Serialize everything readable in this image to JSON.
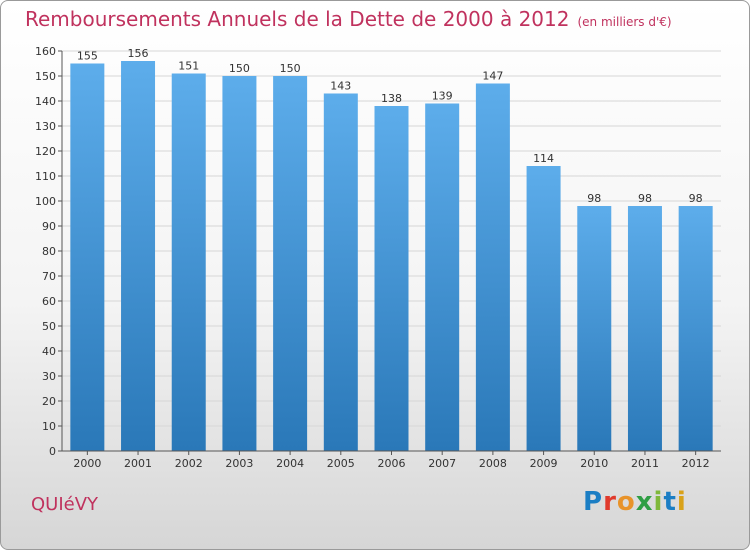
{
  "header": {
    "title": "Remboursements Annuels de la Dette de 2000 à 2012",
    "subtitle": "(en milliers d'€)"
  },
  "footer": {
    "commune": "QUIéVY",
    "logo": [
      "P",
      "r",
      "o",
      "x",
      "i",
      "t",
      "i"
    ]
  },
  "colors": {
    "bar_light": "#5dadeb",
    "bar_dark": "#2a78b8",
    "title": "#c0325e",
    "grid": "#d6d6d6"
  },
  "chart_data": {
    "type": "bar",
    "title": "Remboursements Annuels de la Dette de 2000 à 2012",
    "subtitle": "(en milliers d'€)",
    "categories": [
      "2000",
      "2001",
      "2002",
      "2003",
      "2004",
      "2005",
      "2006",
      "2007",
      "2008",
      "2009",
      "2010",
      "2011",
      "2012"
    ],
    "values": [
      155,
      156,
      151,
      150,
      150,
      143,
      138,
      139,
      147,
      114,
      98,
      98,
      98
    ],
    "ylim": [
      0,
      160
    ],
    "yticks": [
      0,
      10,
      20,
      30,
      40,
      50,
      60,
      70,
      80,
      90,
      100,
      110,
      120,
      130,
      140,
      150,
      160
    ],
    "grid": true,
    "data_labels": true
  }
}
